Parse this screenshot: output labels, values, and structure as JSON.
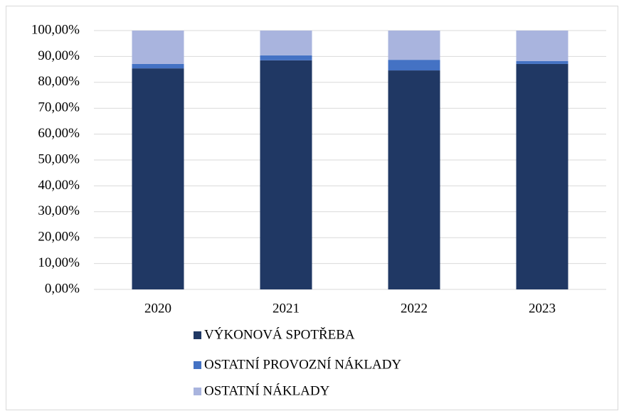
{
  "chart_data": {
    "type": "stacked_bar",
    "categories": [
      "2020",
      "2021",
      "2022",
      "2023"
    ],
    "series": [
      {
        "name": "VÝKONOVÁ SPOTŘEBA",
        "color": "#203864",
        "values": [
          85.4,
          88.5,
          84.6,
          87.1
        ]
      },
      {
        "name": "OSTATNÍ PROVOZNÍ NÁKLADY",
        "color": "#4472c4",
        "values": [
          1.7,
          1.9,
          4.1,
          1.1
        ]
      },
      {
        "name": "OSTATNÍ NÁKLADY",
        "color": "#a9b4de",
        "values": [
          12.9,
          9.6,
          11.3,
          11.8
        ]
      }
    ],
    "ylim": [
      0,
      100
    ],
    "yticks": [
      {
        "value": 0,
        "label": "0,00%"
      },
      {
        "value": 10,
        "label": "10,00%"
      },
      {
        "value": 20,
        "label": "20,00%"
      },
      {
        "value": 30,
        "label": "30,00%"
      },
      {
        "value": 40,
        "label": "40,00%"
      },
      {
        "value": 50,
        "label": "50,00%"
      },
      {
        "value": 60,
        "label": "60,00%"
      },
      {
        "value": 70,
        "label": "70,00%"
      },
      {
        "value": 80,
        "label": "80,00%"
      },
      {
        "value": 90,
        "label": "90,00%"
      },
      {
        "value": 100,
        "label": "100,00%"
      }
    ],
    "grid": true,
    "legend": "bottom"
  }
}
